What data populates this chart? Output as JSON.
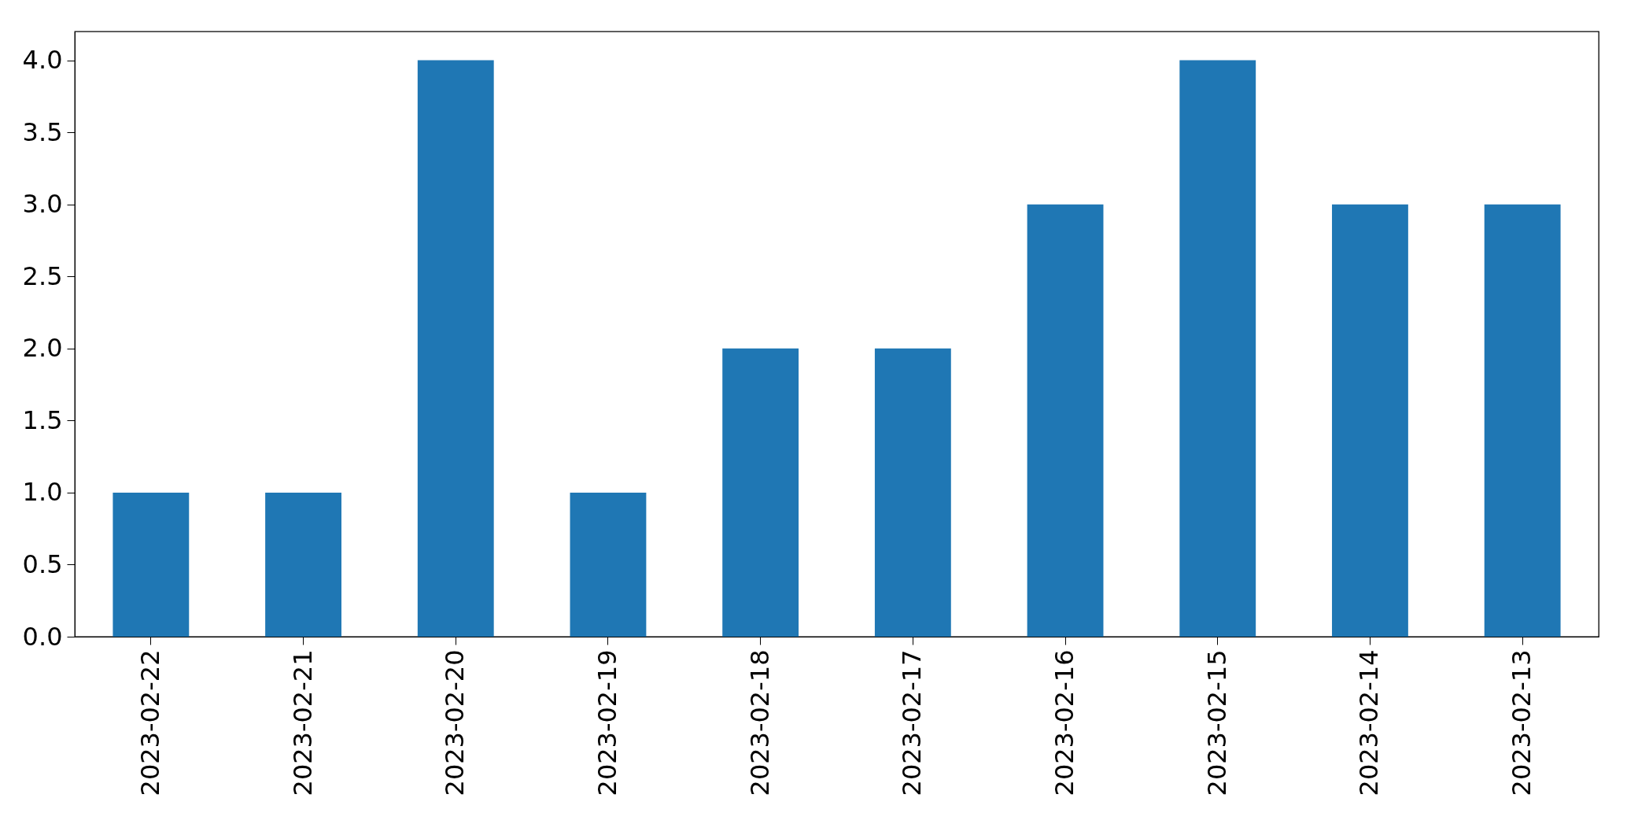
{
  "chart_data": {
    "type": "bar",
    "categories": [
      "2023-02-22",
      "2023-02-21",
      "2023-02-20",
      "2023-02-19",
      "2023-02-18",
      "2023-02-17",
      "2023-02-16",
      "2023-02-15",
      "2023-02-14",
      "2023-02-13"
    ],
    "values": [
      1,
      1,
      4,
      1,
      2,
      2,
      3,
      4,
      3,
      3
    ],
    "color": "#1f77b4",
    "ylim": [
      0,
      4.2
    ],
    "yticks": [
      {
        "value": 0,
        "label": "0.0"
      },
      {
        "value": 0.5,
        "label": "0.5"
      },
      {
        "value": 1,
        "label": "1.0"
      },
      {
        "value": 1.5,
        "label": "1.5"
      },
      {
        "value": 2,
        "label": "2.0"
      },
      {
        "value": 2.5,
        "label": "2.5"
      },
      {
        "value": 3,
        "label": "3.0"
      },
      {
        "value": 3.5,
        "label": "3.5"
      },
      {
        "value": 4,
        "label": "4.0"
      }
    ]
  }
}
